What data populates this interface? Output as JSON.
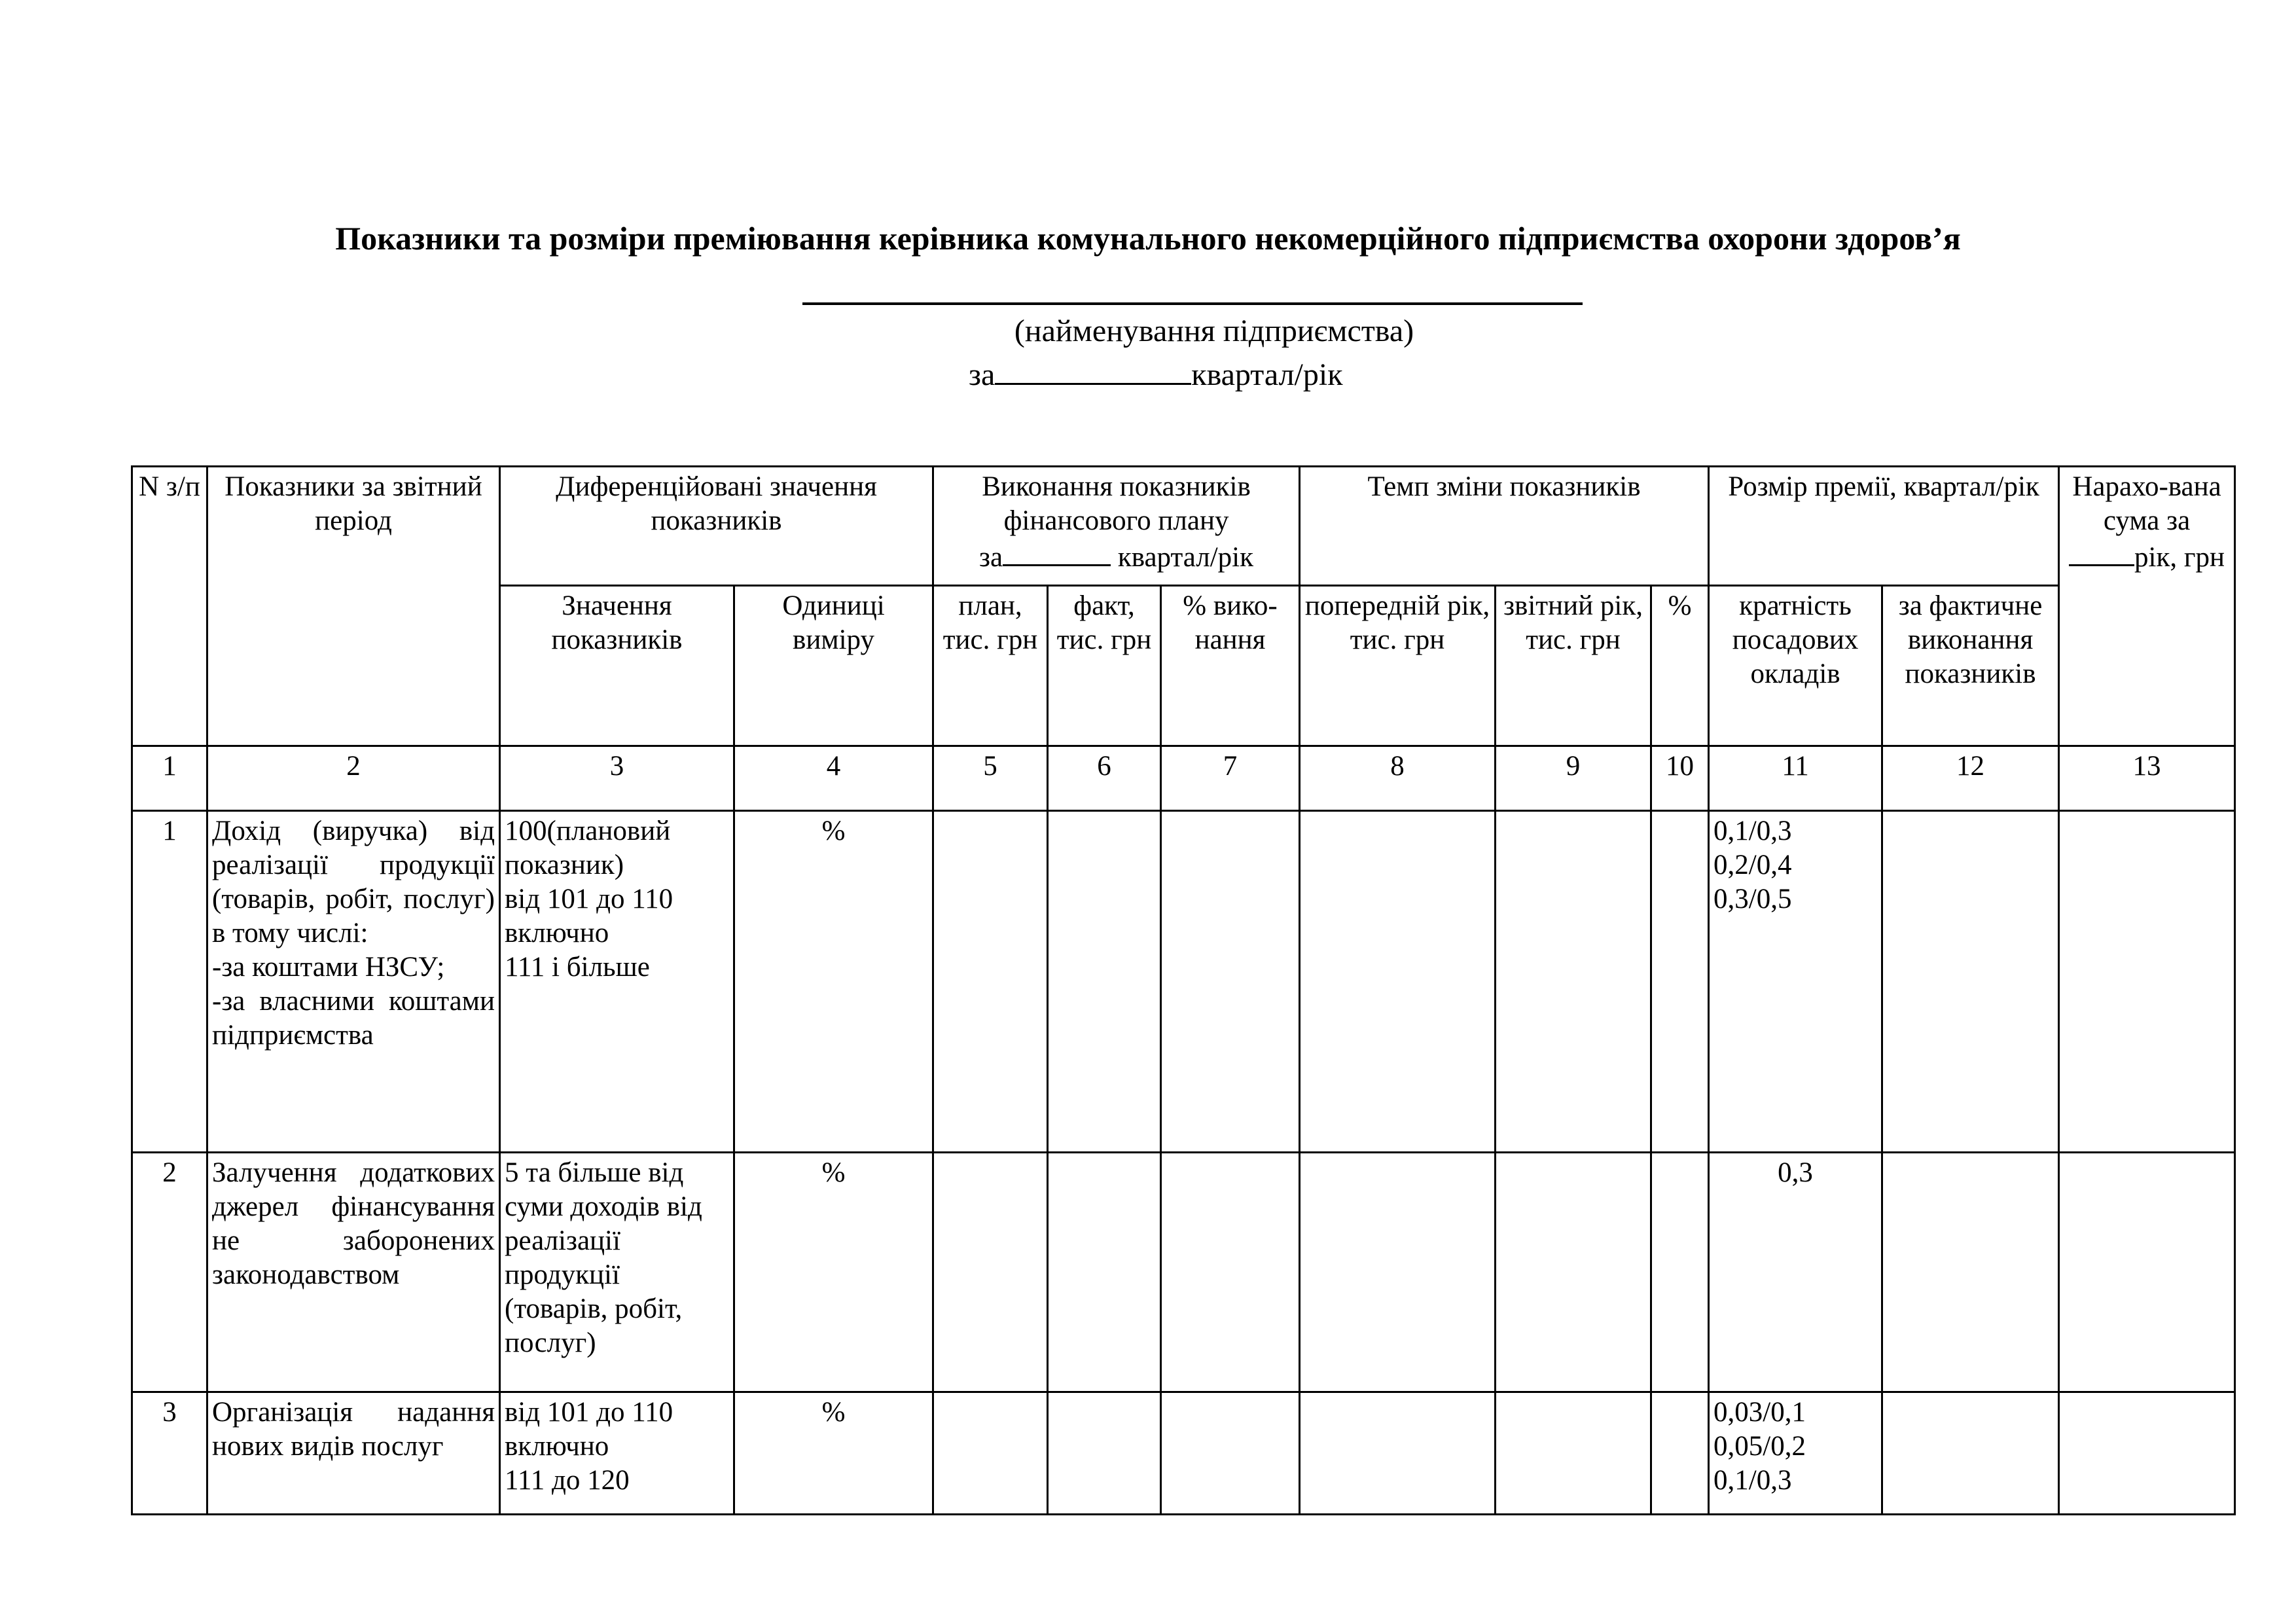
{
  "title": "Показники та розміри преміювання керівника комунального некомерційного підприємства охорони здоров’я",
  "enterprise_caption": "(найменування підприємства)",
  "period_prefix": "за",
  "period_suffix": "квартал/рік",
  "table": {
    "headers": {
      "num": "N з/п",
      "indicators": "Показники за звітний період",
      "diff_values": "Диференційовані значення показників",
      "fin_plan": "Виконання показників фінансового плану",
      "fin_plan_period_prefix": "за",
      "fin_plan_period_suffix": "квартал/рік",
      "rate": "Темп зміни показників",
      "bonus": "Розмір премії, квартал/рік",
      "accrued_line1": "Нарахо-вана сума за",
      "accrued_line2": "рік, грн",
      "values": "Значення показників",
      "units": "Одиниці виміру",
      "plan": "план, тис. грн",
      "fact": "факт, тис. грн",
      "pct_exec": "% вико-нання",
      "prev_year": "попередній рік, тис. грн",
      "report_year": "звітний рік, тис. грн",
      "pct": "%",
      "multiplicity": "кратність посадових окладів",
      "actual_exec": "за фактичне виконання показників"
    },
    "column_numbers": [
      "1",
      "2",
      "3",
      "4",
      "5",
      "6",
      "7",
      "8",
      "9",
      "10",
      "11",
      "12",
      "13"
    ],
    "rows": [
      {
        "num": "1",
        "indicator": [
          "Дохід (виручка) від реалізації продукції (товарів, робіт, послуг) в тому числі:",
          "-за коштами НЗСУ;",
          "-за власними коштами підприємства"
        ],
        "values": [
          "100(плановий показник)",
          "від 101 до 110 включно",
          "111 і більше"
        ],
        "unit": "%",
        "bonus": [
          "0,1/0,3",
          "0,2/0,4",
          "0,3/0,5"
        ]
      },
      {
        "num": "2",
        "indicator": [
          "Залучення додаткових джерел фінансування не заборонених законодавством"
        ],
        "values": [
          "5 та більше від суми доходів від реалізації продукції (товарів, робіт, послуг)"
        ],
        "unit": "%",
        "bonus": [
          "0,3"
        ]
      },
      {
        "num": "3",
        "indicator": [
          "Організація надання нових видів послуг"
        ],
        "values": [
          "від 101 до 110 включно",
          "111 до 120"
        ],
        "unit": "%",
        "bonus": [
          "0,03/0,1",
          "0,05/0,2",
          "0,1/0,3"
        ]
      }
    ]
  }
}
